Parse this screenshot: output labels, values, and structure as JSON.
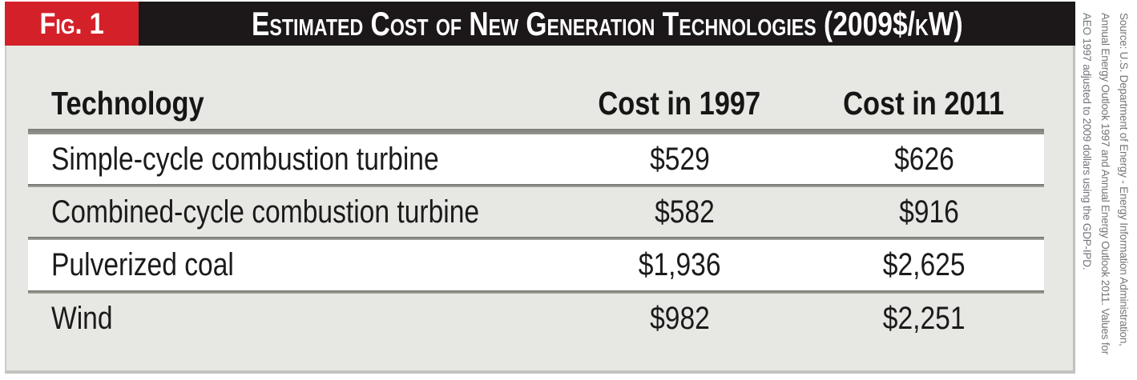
{
  "figure": {
    "label": "Fig. 1",
    "title": "Estimated Cost of New Generation Technologies (2009$/kW)"
  },
  "table": {
    "header": {
      "technology": "Technology",
      "cost_1997": "Cost in 1997",
      "cost_2011": "Cost in 2011"
    },
    "rows": [
      {
        "name": "Simple-cycle combustion turbine",
        "c1997": "$529",
        "c2011": "$626"
      },
      {
        "name": "Combined-cycle combustion turbine",
        "c1997": "$582",
        "c2011": "$916"
      },
      {
        "name": "Pulverized coal",
        "c1997": "$1,936",
        "c2011": "$2,625"
      },
      {
        "name": "Wind",
        "c1997": "$982",
        "c2011": "$2,251"
      }
    ]
  },
  "source": {
    "lines": [
      "Source: U.S. Department of Energy - Energy Information Administration,",
      "Annual Energy Outlook 1997 and Annual Energy Outlook 2011. Values for",
      "AEO 1997 adjusted to 2009 dollars using the GDP-IPD."
    ]
  },
  "colors": {
    "accent_red": "#d42029",
    "title_bar_black": "#1c1819",
    "body_gray": "#e7e8e3",
    "divider_gray": "#8a8c87",
    "source_text_gray": "#757575"
  },
  "chart_data": {
    "type": "table",
    "title": "Estimated Cost of New Generation Technologies (2009$/kW)",
    "units": "2009$/kW",
    "columns": [
      "Technology",
      "Cost in 1997",
      "Cost in 2011"
    ],
    "rows": [
      [
        "Simple-cycle combustion turbine",
        529,
        626
      ],
      [
        "Combined-cycle combustion turbine",
        582,
        916
      ],
      [
        "Pulverized coal",
        1936,
        2625
      ],
      [
        "Wind",
        982,
        2251
      ]
    ]
  }
}
